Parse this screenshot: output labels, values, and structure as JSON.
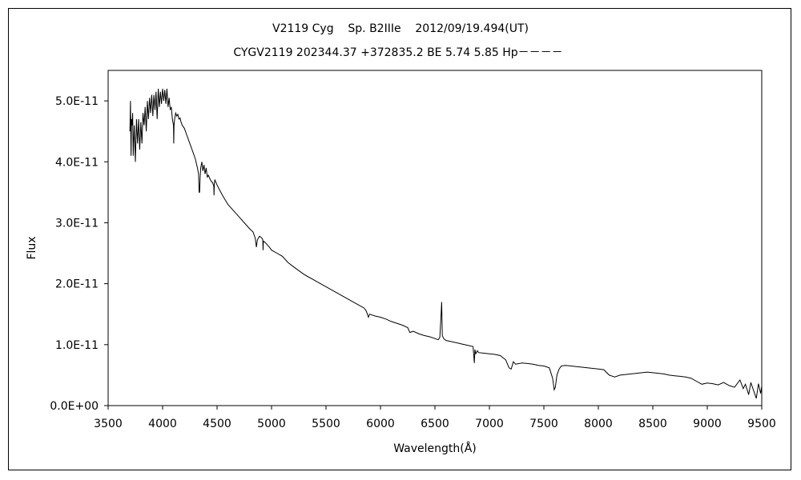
{
  "chart_data": {
    "type": "line",
    "title": "V2119 Cyg    Sp. B2IIIe    2012/09/19.494(UT)",
    "subtitle": "CYGV2119 202344.37 +372835.2 BE 5.74 5.85 Hp－－－－",
    "xlabel": "Wavelength(Å)",
    "ylabel": "Flux",
    "xlim": [
      3500,
      9500
    ],
    "ylim": [
      0,
      5.5e-11
    ],
    "x_ticks": [
      3500,
      4000,
      4500,
      5000,
      5500,
      6000,
      6500,
      7000,
      7500,
      8000,
      8500,
      9000,
      9500
    ],
    "x_tick_labels": [
      "3500",
      "4000",
      "4500",
      "5000",
      "5500",
      "6000",
      "6500",
      "7000",
      "7500",
      "8000",
      "8500",
      "9000",
      "9500"
    ],
    "y_ticks": [
      0,
      1e-11,
      2e-11,
      3e-11,
      4e-11,
      5e-11
    ],
    "y_tick_labels": [
      "0.0E+00",
      "1.0E-11",
      "2.0E-11",
      "3.0E-11",
      "4.0E-11",
      "5.0E-11"
    ],
    "grid": false,
    "line_color": "#000000",
    "series": [
      {
        "x": [
          3700,
          3705,
          3710,
          3715,
          3720,
          3725,
          3730,
          3740,
          3750,
          3760,
          3770,
          3780,
          3790,
          3800,
          3810,
          3820,
          3830,
          3840,
          3850,
          3860,
          3870,
          3880,
          3890,
          3900,
          3910,
          3920,
          3930,
          3940,
          3950,
          3960,
          3970,
          3980,
          3990,
          4000,
          4010,
          4020,
          4030,
          4040,
          4050,
          4060,
          4070,
          4080,
          4090,
          4100,
          4102,
          4105,
          4110,
          4120,
          4130,
          4140,
          4150,
          4160,
          4170,
          4180,
          4200,
          4220,
          4240,
          4260,
          4280,
          4300,
          4320,
          4330,
          4335,
          4340,
          4345,
          4350,
          4360,
          4370,
          4380,
          4390,
          4400,
          4410,
          4420,
          4440,
          4460,
          4470,
          4472,
          4475,
          4480,
          4500,
          4520,
          4550,
          4600,
          4650,
          4700,
          4750,
          4800,
          4830,
          4850,
          4861,
          4870,
          4890,
          4910,
          4920,
          4922,
          4925,
          4940,
          4960,
          4980,
          5000,
          5050,
          5100,
          5150,
          5200,
          5300,
          5400,
          5500,
          5600,
          5700,
          5800,
          5850,
          5870,
          5890,
          5900,
          5950,
          6000,
          6050,
          6100,
          6200,
          6250,
          6270,
          6300,
          6350,
          6400,
          6450,
          6500,
          6530,
          6545,
          6555,
          6562,
          6568,
          6580,
          6600,
          6650,
          6700,
          6750,
          6800,
          6850,
          6862,
          6867,
          6875,
          6890,
          6900,
          6950,
          7000,
          7050,
          7100,
          7150,
          7180,
          7200,
          7220,
          7240,
          7300,
          7350,
          7400,
          7450,
          7500,
          7550,
          7580,
          7595,
          7605,
          7620,
          7640,
          7660,
          7700,
          7750,
          7800,
          7850,
          7900,
          7950,
          8000,
          8050,
          8100,
          8150,
          8200,
          8250,
          8300,
          8350,
          8400,
          8450,
          8500,
          8550,
          8600,
          8650,
          8700,
          8750,
          8800,
          8850,
          8900,
          8950,
          9000,
          9050,
          9100,
          9150,
          9200,
          9250,
          9300,
          9330,
          9350,
          9380,
          9400,
          9430,
          9450,
          9470,
          9490,
          9500
        ],
        "y": [
          4.5e-11,
          5e-11,
          4.1e-11,
          4.7e-11,
          4.6e-11,
          4.8e-11,
          4.1e-11,
          4.6e-11,
          4e-11,
          4.7e-11,
          4.3e-11,
          4.7e-11,
          4.2e-11,
          4.65e-11,
          4.3e-11,
          4.8e-11,
          4.6e-11,
          4.9e-11,
          4.5e-11,
          5e-11,
          4.7e-11,
          5.05e-11,
          4.8e-11,
          5.1e-11,
          4.75e-11,
          5.1e-11,
          4.85e-11,
          5.15e-11,
          4.7e-11,
          5.2e-11,
          4.9e-11,
          5.15e-11,
          4.95e-11,
          5.2e-11,
          5e-11,
          5.18e-11,
          4.95e-11,
          5.2e-11,
          4.9e-11,
          5.05e-11,
          4.85e-11,
          4.9e-11,
          4.7e-11,
          4.6e-11,
          4.3e-11,
          4.6e-11,
          4.7e-11,
          4.8e-11,
          4.75e-11,
          4.78e-11,
          4.7e-11,
          4.72e-11,
          4.65e-11,
          4.6e-11,
          4.55e-11,
          4.45e-11,
          4.35e-11,
          4.25e-11,
          4.15e-11,
          4.05e-11,
          3.9e-11,
          3.8e-11,
          3.5e-11,
          3.5e-11,
          3.75e-11,
          3.9e-11,
          4e-11,
          3.85e-11,
          3.95e-11,
          3.8e-11,
          3.9e-11,
          3.75e-11,
          3.78e-11,
          3.7e-11,
          3.65e-11,
          3.6e-11,
          3.45e-11,
          3.65e-11,
          3.7e-11,
          3.62e-11,
          3.55e-11,
          3.45e-11,
          3.3e-11,
          3.2e-11,
          3.1e-11,
          3e-11,
          2.9e-11,
          2.85e-11,
          2.75e-11,
          2.6e-11,
          2.72e-11,
          2.78e-11,
          2.75e-11,
          2.72e-11,
          2.55e-11,
          2.7e-11,
          2.68e-11,
          2.64e-11,
          2.6e-11,
          2.55e-11,
          2.5e-11,
          2.45e-11,
          2.35e-11,
          2.28e-11,
          2.15e-11,
          2.05e-11,
          1.95e-11,
          1.85e-11,
          1.75e-11,
          1.65e-11,
          1.6e-11,
          1.55e-11,
          1.45e-11,
          1.5e-11,
          1.47e-11,
          1.45e-11,
          1.42e-11,
          1.38e-11,
          1.32e-11,
          1.28e-11,
          1.2e-11,
          1.22e-11,
          1.18e-11,
          1.15e-11,
          1.13e-11,
          1.1e-11,
          1.08e-11,
          1.12e-11,
          1.45e-11,
          1.7e-11,
          1.15e-11,
          1.1e-11,
          1.07e-11,
          1.05e-11,
          1.03e-11,
          1.01e-11,
          9.9e-12,
          9.7e-12,
          7e-12,
          9.2e-12,
          8.5e-12,
          9e-12,
          8.7e-12,
          8.6e-12,
          8.5e-12,
          8.4e-12,
          8.2e-12,
          7.5e-12,
          6.2e-12,
          6e-12,
          7.2e-12,
          6.8e-12,
          7e-12,
          6.9e-12,
          6.8e-12,
          6.6e-12,
          6.5e-12,
          6.2e-12,
          4.5e-12,
          2.6e-12,
          3e-12,
          5e-12,
          6e-12,
          6.5e-12,
          6.6e-12,
          6.5e-12,
          6.4e-12,
          6.3e-12,
          6.2e-12,
          6.1e-12,
          6e-12,
          5.9e-12,
          5e-12,
          4.7e-12,
          5e-12,
          5.1e-12,
          5.2e-12,
          5.3e-12,
          5.4e-12,
          5.5e-12,
          5.4e-12,
          5.3e-12,
          5.2e-12,
          5e-12,
          4.9e-12,
          4.8e-12,
          4.7e-12,
          4.5e-12,
          4e-12,
          3.5e-12,
          3.7e-12,
          3.6e-12,
          3.4e-12,
          3.8e-12,
          3.3e-12,
          3e-12,
          4.2e-12,
          2.8e-12,
          3.5e-12,
          1.8e-12,
          3.8e-12,
          2.2e-12,
          1.2e-12,
          3.6e-12,
          2e-12,
          3.2e-12
        ]
      }
    ]
  }
}
